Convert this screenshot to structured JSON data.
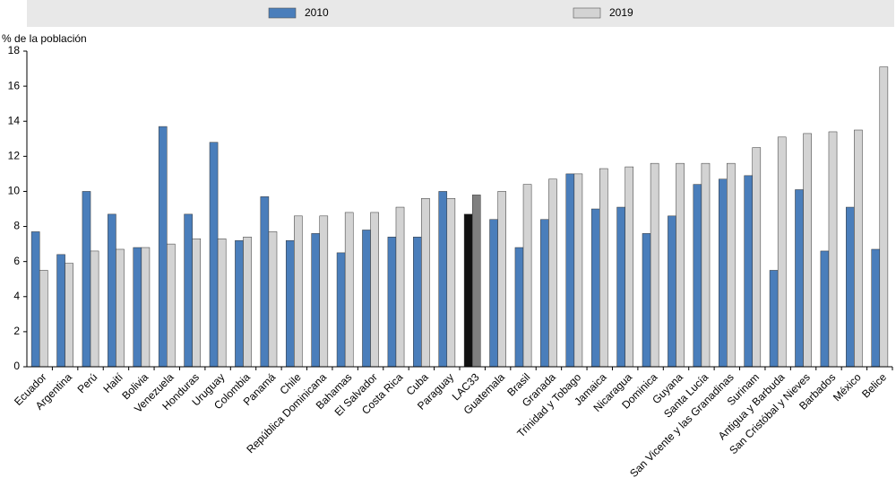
{
  "chart_data": {
    "type": "bar",
    "y_label": "% de la población",
    "categories": [
      "Ecuador",
      "Argentina",
      "Perú",
      "Haití",
      "Bolivia",
      "Venezuela",
      "Honduras",
      "Uruguay",
      "Colombia",
      "Panamá",
      "Chile",
      "República Dominicana",
      "Bahamas",
      "El Salvador",
      "Costa Rica",
      "Cuba",
      "Paraguay",
      "LAC33",
      "Guatemala",
      "Brasil",
      "Granada",
      "Trinidad y Tobago",
      "Jamaica",
      "Nicaragua",
      "Dominica",
      "Guyana",
      "Santa Lucía",
      "San Vicente y las Granadinas",
      "Surinam",
      "Antigua y Barbuda",
      "San Cristóbal y Nieves",
      "Barbados",
      "México",
      "Belice"
    ],
    "series": [
      {
        "name": "2010",
        "color": "#4a7ebb",
        "highlight_color": "#111111",
        "values": [
          7.7,
          6.4,
          10.0,
          8.7,
          6.8,
          13.7,
          8.7,
          12.8,
          7.2,
          9.7,
          7.2,
          7.6,
          6.5,
          7.8,
          7.4,
          7.4,
          10.0,
          8.7,
          8.4,
          6.8,
          8.4,
          11.0,
          9.0,
          9.1,
          7.6,
          8.6,
          10.4,
          10.7,
          10.9,
          5.5,
          10.1,
          6.6,
          9.1,
          6.7
        ]
      },
      {
        "name": "2019",
        "color": "#d3d3d3",
        "highlight_color": "#7f7f7f",
        "values": [
          5.5,
          5.9,
          6.6,
          6.7,
          6.8,
          7.0,
          7.3,
          7.3,
          7.4,
          7.7,
          8.6,
          8.6,
          8.8,
          8.8,
          9.1,
          9.6,
          9.6,
          9.8,
          10.0,
          10.4,
          10.7,
          11.0,
          11.3,
          11.4,
          11.6,
          11.6,
          11.6,
          11.6,
          12.5,
          13.1,
          13.3,
          13.4,
          13.5,
          17.1
        ]
      }
    ],
    "highlight_index": 17,
    "ylim": [
      0,
      18
    ],
    "yticks": [
      0,
      2,
      4,
      6,
      8,
      10,
      12,
      14,
      16,
      18
    ],
    "grid": false
  }
}
